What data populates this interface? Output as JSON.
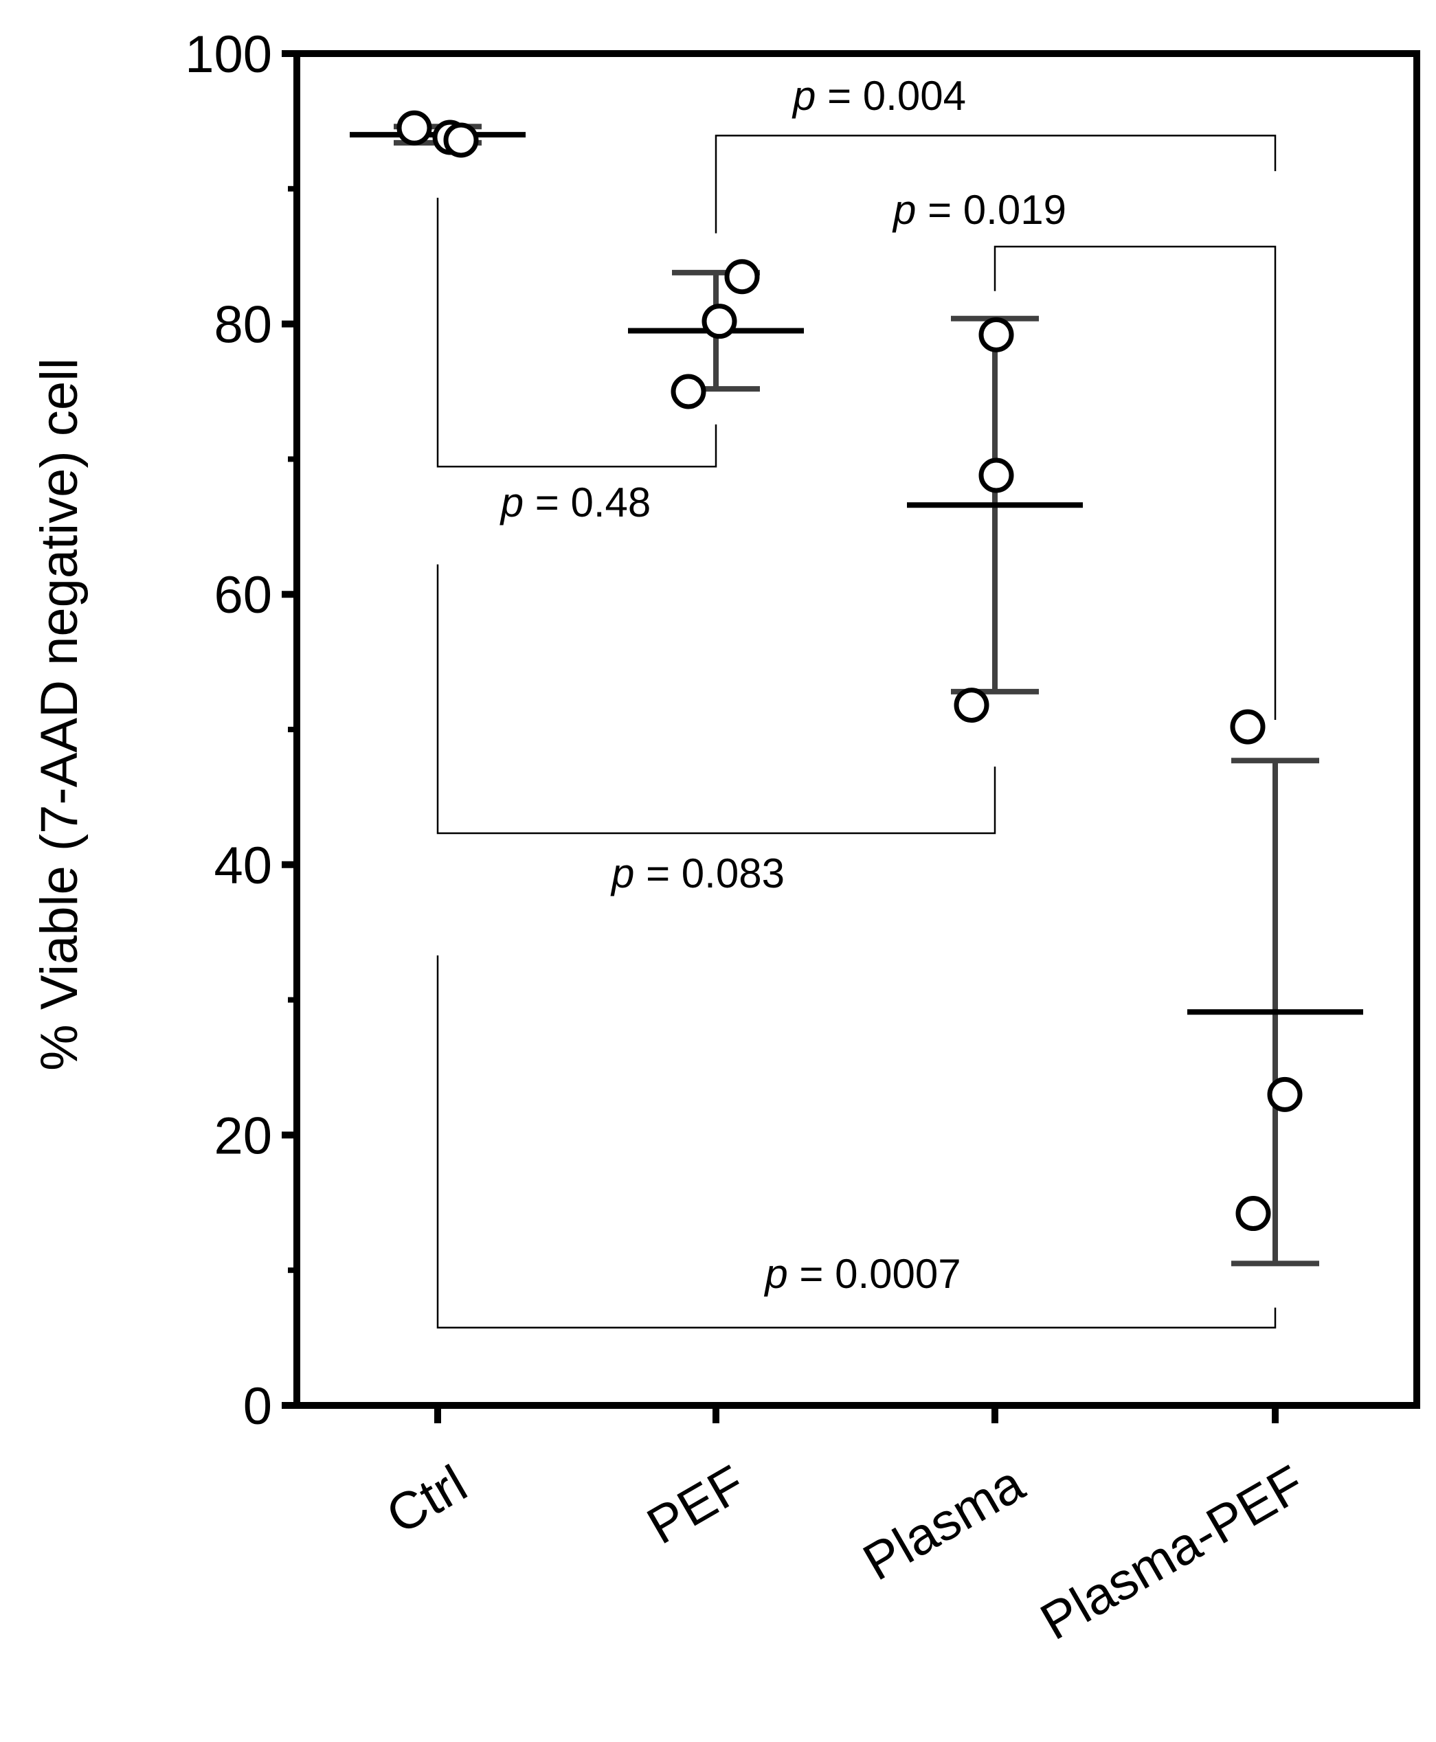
{
  "chart_data": {
    "type": "scatter",
    "ylabel": "% Viable (7-AAD negative) cell",
    "xlabel": "",
    "ylim": [
      0,
      100
    ],
    "yticks": [
      0,
      20,
      40,
      60,
      80,
      100
    ],
    "ytick_labels": [
      "0",
      "20",
      "40",
      "60",
      "80",
      "100"
    ],
    "categories": [
      "Ctrl",
      "PEF",
      "Plasma",
      "Plasma-PEF"
    ],
    "groups": [
      {
        "category": "Ctrl",
        "points": [
          94.5,
          93.8,
          93.6
        ],
        "mean": 94.0,
        "error_low": 93.4,
        "error_high": 94.6
      },
      {
        "category": "PEF",
        "points": [
          83.5,
          80.2,
          75.0
        ],
        "mean": 79.5,
        "error_low": 75.2,
        "error_high": 83.8
      },
      {
        "category": "Plasma",
        "points": [
          79.2,
          68.8,
          51.8
        ],
        "mean": 66.6,
        "error_low": 52.8,
        "error_high": 80.4
      },
      {
        "category": "Plasma-PEF",
        "points": [
          50.2,
          23.0,
          14.2
        ],
        "mean": 29.1,
        "error_low": 10.5,
        "error_high": 47.7
      }
    ],
    "comparisons": [
      {
        "from": "PEF",
        "to": "Plasma-PEF",
        "p_prefix": "p",
        "p_text": " = 0.004",
        "style": "top"
      },
      {
        "from": "Plasma",
        "to": "Plasma-PEF",
        "p_prefix": "p",
        "p_text": " = 0.019",
        "style": "top"
      },
      {
        "from": "Ctrl",
        "to": "PEF",
        "p_prefix": "p",
        "p_text": " = 0.48",
        "style": "bottom"
      },
      {
        "from": "Ctrl",
        "to": "Plasma",
        "p_prefix": "p",
        "p_text": " = 0.083",
        "style": "bottom"
      },
      {
        "from": "Ctrl",
        "to": "Plasma-PEF",
        "p_prefix": "p",
        "p_text": " = 0.0007",
        "style": "bottom"
      }
    ],
    "colors": {
      "axis": "#000000",
      "error_bar": "#404040",
      "mean_line": "#000000",
      "point_stroke": "#000000",
      "point_fill": "#ffffff",
      "bracket": "#000000"
    }
  }
}
